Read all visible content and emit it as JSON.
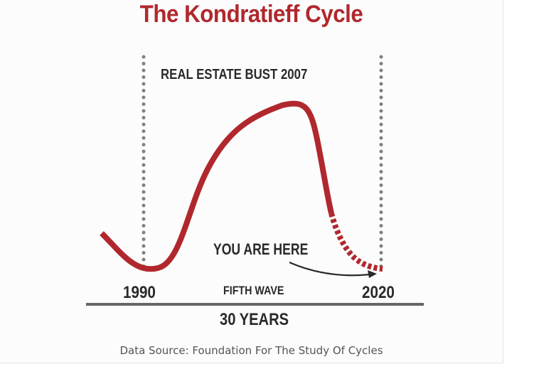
{
  "title": "The Kondratieff Cycle",
  "annotations": {
    "peak_event": "REAL ESTATE BUST 2007",
    "current_position": "YOU ARE HERE",
    "wave_name": "FIFTH WAVE",
    "duration": "30 YEARS"
  },
  "axis": {
    "start_year": "1990",
    "end_year": "2020"
  },
  "source": "Data Source: Foundation For The Study Of Cycles",
  "colors": {
    "title": "#b0282d",
    "curve": "#b0282d",
    "text": "#2a2a2a",
    "axis": "#666666",
    "guides": "#808080",
    "source": "#555555"
  }
}
